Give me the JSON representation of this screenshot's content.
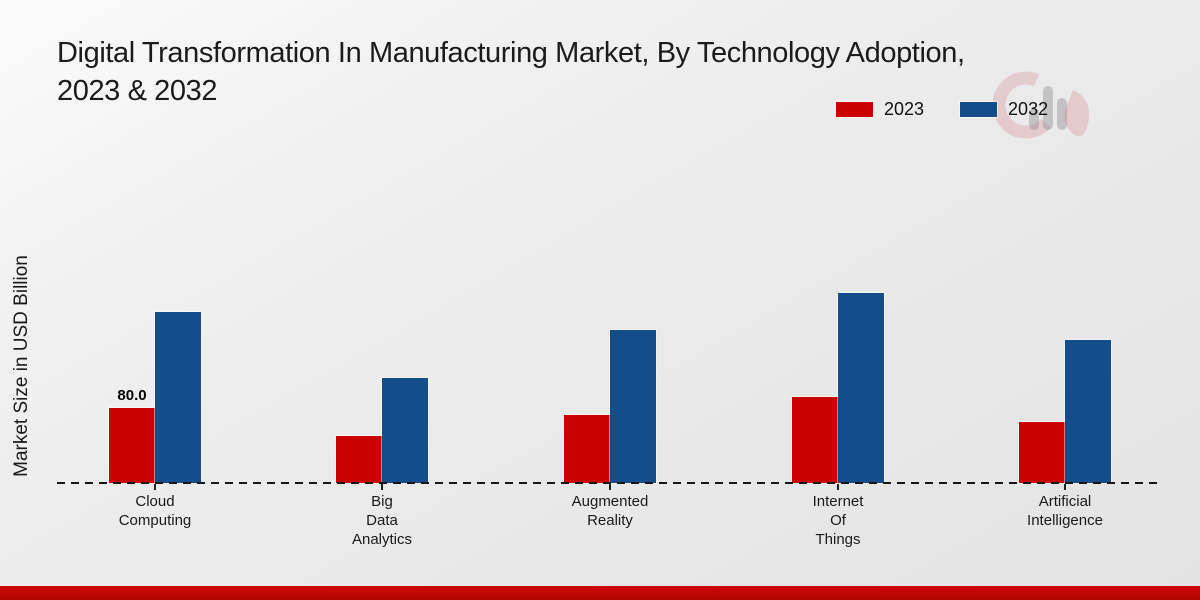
{
  "header": {
    "title_line1": "Digital Transformation In Manufacturing Market, By Technology Adoption,",
    "title_line2": "2023 & 2032"
  },
  "chart_data": {
    "type": "bar",
    "title": "Digital Transformation In Manufacturing Market, By Technology Adoption, 2023 & 2032",
    "ylabel": "Market Size in USD Billion",
    "categories": [
      "Cloud Computing",
      "Big Data Analytics",
      "Augmented Reality",
      "Internet Of Things",
      "Artificial Intelligence"
    ],
    "category_label_lines": [
      [
        "Cloud",
        "Computing"
      ],
      [
        "Big",
        "Data",
        "Analytics"
      ],
      [
        "Augmented",
        "Reality"
      ],
      [
        "Internet",
        "Of",
        "Things"
      ],
      [
        "Artificial",
        "Intelligence"
      ]
    ],
    "series": [
      {
        "name": "2023",
        "color": "#cb0101",
        "values": [
          80.0,
          50,
          73,
          92,
          65
        ]
      },
      {
        "name": "2032",
        "color": "#134e8b",
        "values": [
          182,
          112,
          163,
          203,
          153
        ]
      }
    ],
    "ylim": [
      0,
      210
    ],
    "grid": false,
    "legend_position": "top-right",
    "baseline_style": "dashed",
    "annotations": [
      {
        "series_index": 0,
        "category_index": 0,
        "text": "80.0"
      }
    ]
  },
  "footer": {
    "accent_color": "#c00505"
  },
  "watermark": {
    "name": "market-research-logo"
  }
}
